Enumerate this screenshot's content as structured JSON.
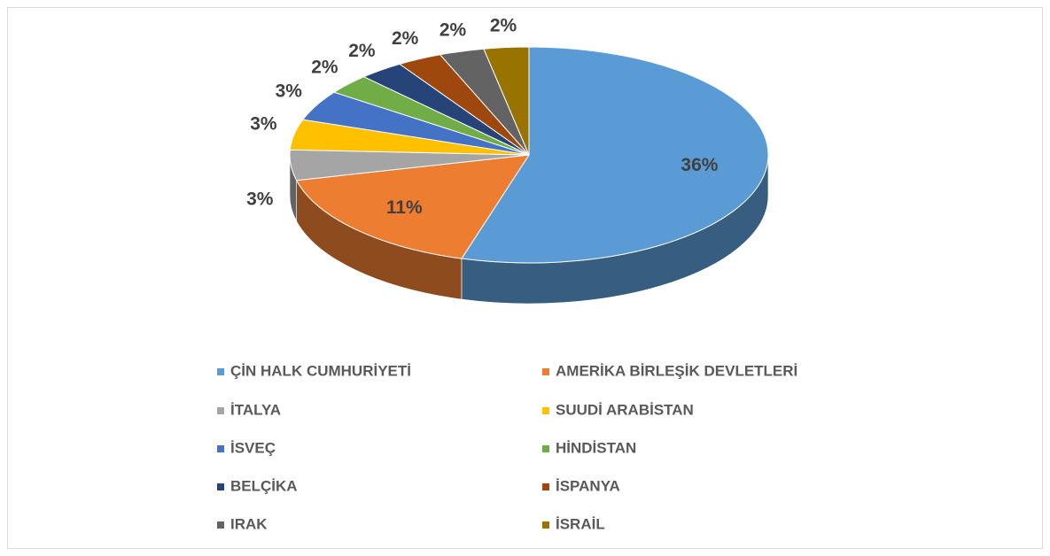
{
  "chart_data": {
    "type": "pie3d",
    "categories": [
      "ÇİN HALK CUMHURİYETİ",
      "AMERİKA BİRLEŞİK DEVLETLERİ",
      "İTALYA",
      "SUUDİ ARABİSTAN",
      "İSVEÇ",
      "HİNDİSTAN",
      "BELÇİKA",
      "İSPANYA",
      "IRAK",
      "İSRAİL"
    ],
    "values": [
      36,
      11,
      3,
      3,
      3,
      2,
      2,
      2,
      2,
      2
    ],
    "value_labels": [
      "36%",
      "11%",
      "3%",
      "3%",
      "3%",
      "2%",
      "2%",
      "2%",
      "2%",
      "2%"
    ],
    "colors": [
      "#5b9bd5",
      "#ed7d31",
      "#a5a5a5",
      "#ffc000",
      "#4472c4",
      "#70ad47",
      "#264478",
      "#9e480e",
      "#636363",
      "#997300"
    ],
    "legend": "bottom"
  }
}
